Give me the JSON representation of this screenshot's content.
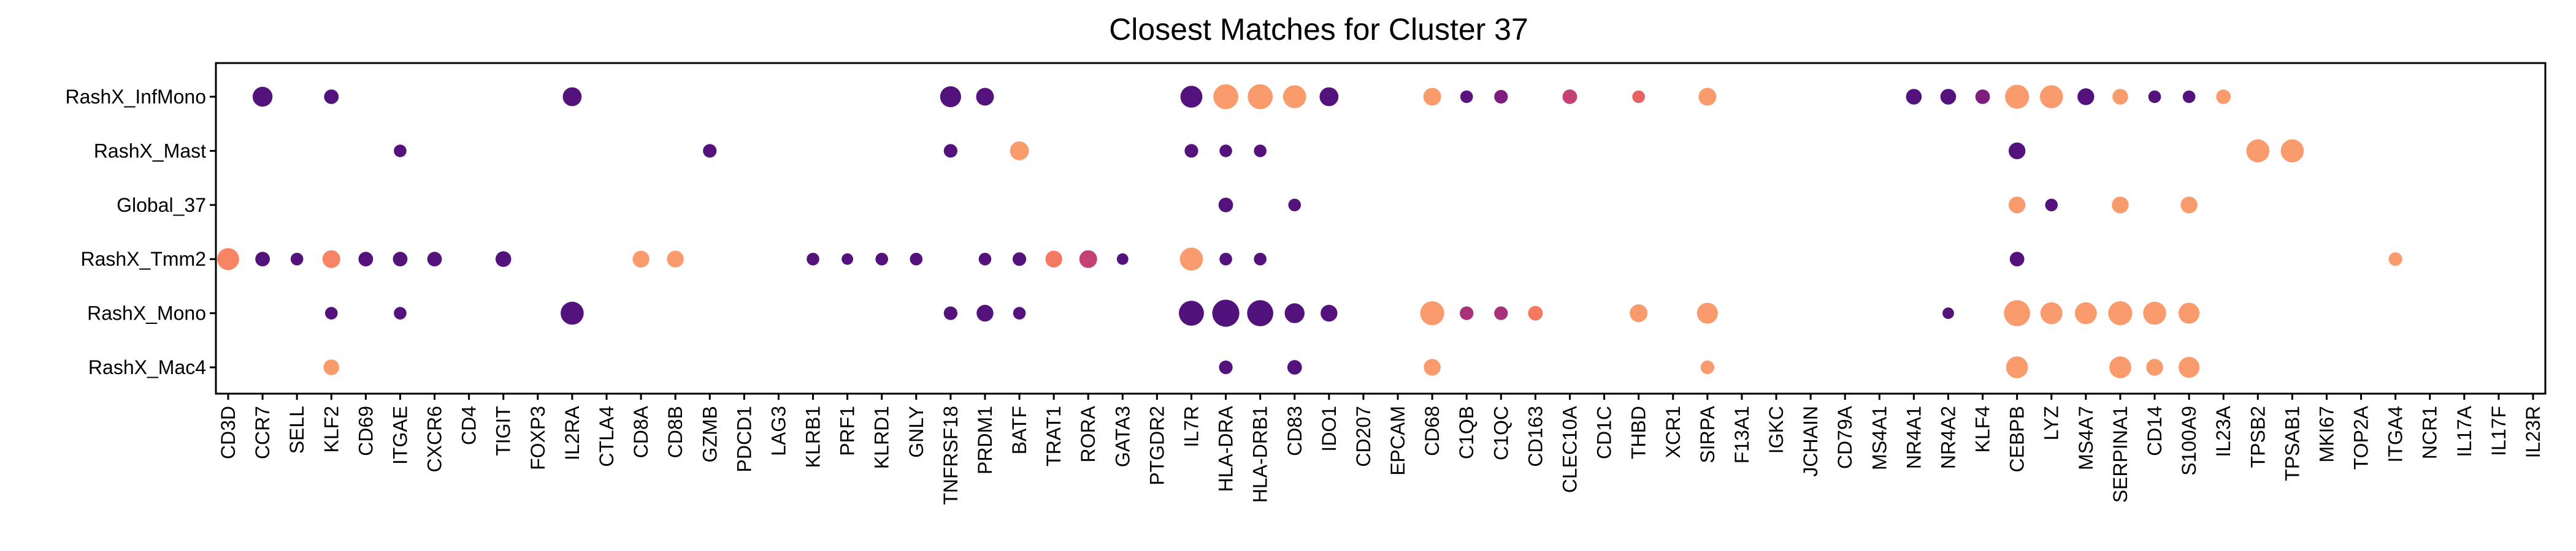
{
  "chart_data": {
    "type": "scatter",
    "title": "Closest Matches for Cluster 37",
    "xlabel": "",
    "ylabel": "",
    "grid": false,
    "legend": "none",
    "genes": [
      "CD3D",
      "CCR7",
      "SELL",
      "KLF2",
      "CD69",
      "ITGAE",
      "CXCR6",
      "CD4",
      "TIGIT",
      "FOXP3",
      "IL2RA",
      "CTLA4",
      "CD8A",
      "CD8B",
      "GZMB",
      "PDCD1",
      "LAG3",
      "KLRB1",
      "PRF1",
      "KLRD1",
      "GNLY",
      "TNFRSF18",
      "PRDM1",
      "BATF",
      "TRAT1",
      "RORA",
      "GATA3",
      "PTGDR2",
      "IL7R",
      "HLA-DRA",
      "HLA-DRB1",
      "CD83",
      "IDO1",
      "CD207",
      "EPCAM",
      "CD68",
      "C1QB",
      "C1QC",
      "CD163",
      "CLEC10A",
      "CD1C",
      "THBD",
      "XCR1",
      "SIRPA",
      "F13A1",
      "IGKC",
      "JCHAIN",
      "CD79A",
      "MS4A1",
      "NR4A1",
      "NR4A2",
      "KLF4",
      "CEBPB",
      "LYZ",
      "MS4A7",
      "SERPINA1",
      "CD14",
      "S100A9",
      "IL23A",
      "TPSB2",
      "TPSAB1",
      "MKI67",
      "TOP2A",
      "ITGA4",
      "NCR1",
      "IL17A",
      "IL17F",
      "IL23R"
    ],
    "rows": [
      "RashX_InfMono",
      "RashX_Mast",
      "Global_37",
      "RashX_Tmm2",
      "RashX_Mono",
      "RashX_Mac4"
    ],
    "size_scale": "point size = fraction of cells expressing (0-1)",
    "color_scale": "point color = scaled expression (0 dark purple - 1 light orange)",
    "points": [
      {
        "row": "RashX_InfMono",
        "gene": "CCR7",
        "size": 0.6,
        "color": 0.05
      },
      {
        "row": "RashX_InfMono",
        "gene": "KLF2",
        "size": 0.35,
        "color": 0.05
      },
      {
        "row": "RashX_InfMono",
        "gene": "IL2RA",
        "size": 0.55,
        "color": 0.05
      },
      {
        "row": "RashX_InfMono",
        "gene": "TNFRSF18",
        "size": 0.65,
        "color": 0.05
      },
      {
        "row": "RashX_InfMono",
        "gene": "PRDM1",
        "size": 0.5,
        "color": 0.05
      },
      {
        "row": "RashX_InfMono",
        "gene": "IL7R",
        "size": 0.7,
        "color": 0.05
      },
      {
        "row": "RashX_InfMono",
        "gene": "HLA-DRA",
        "size": 0.85,
        "color": 0.95
      },
      {
        "row": "RashX_InfMono",
        "gene": "HLA-DRB1",
        "size": 0.85,
        "color": 0.95
      },
      {
        "row": "RashX_InfMono",
        "gene": "CD83",
        "size": 0.75,
        "color": 0.95
      },
      {
        "row": "RashX_InfMono",
        "gene": "IDO1",
        "size": 0.55,
        "color": 0.05
      },
      {
        "row": "RashX_InfMono",
        "gene": "CD68",
        "size": 0.5,
        "color": 0.95
      },
      {
        "row": "RashX_InfMono",
        "gene": "C1QB",
        "size": 0.25,
        "color": 0.1
      },
      {
        "row": "RashX_InfMono",
        "gene": "C1QC",
        "size": 0.3,
        "color": 0.3
      },
      {
        "row": "RashX_InfMono",
        "gene": "CLEC10A",
        "size": 0.35,
        "color": 0.55
      },
      {
        "row": "RashX_InfMono",
        "gene": "THBD",
        "size": 0.25,
        "color": 0.7
      },
      {
        "row": "RashX_InfMono",
        "gene": "SIRPA",
        "size": 0.5,
        "color": 0.95
      },
      {
        "row": "RashX_InfMono",
        "gene": "NR4A1",
        "size": 0.4,
        "color": 0.05
      },
      {
        "row": "RashX_InfMono",
        "gene": "NR4A2",
        "size": 0.4,
        "color": 0.05
      },
      {
        "row": "RashX_InfMono",
        "gene": "KLF4",
        "size": 0.35,
        "color": 0.3
      },
      {
        "row": "RashX_InfMono",
        "gene": "CEBPB",
        "size": 0.8,
        "color": 0.95
      },
      {
        "row": "RashX_InfMono",
        "gene": "LYZ",
        "size": 0.75,
        "color": 0.95
      },
      {
        "row": "RashX_InfMono",
        "gene": "MS4A7",
        "size": 0.45,
        "color": 0.05
      },
      {
        "row": "RashX_InfMono",
        "gene": "SERPINA1",
        "size": 0.4,
        "color": 0.95
      },
      {
        "row": "RashX_InfMono",
        "gene": "CD14",
        "size": 0.25,
        "color": 0.05
      },
      {
        "row": "RashX_InfMono",
        "gene": "S100A9",
        "size": 0.25,
        "color": 0.05
      },
      {
        "row": "RashX_InfMono",
        "gene": "IL23A",
        "size": 0.35,
        "color": 0.95
      },
      {
        "row": "RashX_Mast",
        "gene": "ITGAE",
        "size": 0.25,
        "color": 0.05
      },
      {
        "row": "RashX_Mast",
        "gene": "GZMB",
        "size": 0.3,
        "color": 0.05
      },
      {
        "row": "RashX_Mast",
        "gene": "TNFRSF18",
        "size": 0.3,
        "color": 0.05
      },
      {
        "row": "RashX_Mast",
        "gene": "BATF",
        "size": 0.55,
        "color": 0.95
      },
      {
        "row": "RashX_Mast",
        "gene": "IL7R",
        "size": 0.3,
        "color": 0.05
      },
      {
        "row": "RashX_Mast",
        "gene": "HLA-DRA",
        "size": 0.25,
        "color": 0.05
      },
      {
        "row": "RashX_Mast",
        "gene": "HLA-DRB1",
        "size": 0.25,
        "color": 0.05
      },
      {
        "row": "RashX_Mast",
        "gene": "CEBPB",
        "size": 0.45,
        "color": 0.05
      },
      {
        "row": "RashX_Mast",
        "gene": "TPSB2",
        "size": 0.75,
        "color": 0.95
      },
      {
        "row": "RashX_Mast",
        "gene": "TPSAB1",
        "size": 0.75,
        "color": 0.95
      },
      {
        "row": "Global_37",
        "gene": "HLA-DRA",
        "size": 0.35,
        "color": 0.05
      },
      {
        "row": "Global_37",
        "gene": "CD83",
        "size": 0.25,
        "color": 0.05
      },
      {
        "row": "Global_37",
        "gene": "CEBPB",
        "size": 0.45,
        "color": 0.95
      },
      {
        "row": "Global_37",
        "gene": "LYZ",
        "size": 0.25,
        "color": 0.05
      },
      {
        "row": "Global_37",
        "gene": "SERPINA1",
        "size": 0.45,
        "color": 0.95
      },
      {
        "row": "Global_37",
        "gene": "S100A9",
        "size": 0.45,
        "color": 0.95
      },
      {
        "row": "RashX_Tmm2",
        "gene": "CD3D",
        "size": 0.7,
        "color": 0.85
      },
      {
        "row": "RashX_Tmm2",
        "gene": "CCR7",
        "size": 0.35,
        "color": 0.05
      },
      {
        "row": "RashX_Tmm2",
        "gene": "SELL",
        "size": 0.25,
        "color": 0.05
      },
      {
        "row": "RashX_Tmm2",
        "gene": "KLF2",
        "size": 0.5,
        "color": 0.85
      },
      {
        "row": "RashX_Tmm2",
        "gene": "CD69",
        "size": 0.35,
        "color": 0.05
      },
      {
        "row": "RashX_Tmm2",
        "gene": "ITGAE",
        "size": 0.35,
        "color": 0.05
      },
      {
        "row": "RashX_Tmm2",
        "gene": "CXCR6",
        "size": 0.35,
        "color": 0.05
      },
      {
        "row": "RashX_Tmm2",
        "gene": "TIGIT",
        "size": 0.4,
        "color": 0.05
      },
      {
        "row": "RashX_Tmm2",
        "gene": "CD8A",
        "size": 0.45,
        "color": 0.95
      },
      {
        "row": "RashX_Tmm2",
        "gene": "CD8B",
        "size": 0.45,
        "color": 0.95
      },
      {
        "row": "RashX_Tmm2",
        "gene": "KLRB1",
        "size": 0.25,
        "color": 0.05
      },
      {
        "row": "RashX_Tmm2",
        "gene": "PRF1",
        "size": 0.2,
        "color": 0.05
      },
      {
        "row": "RashX_Tmm2",
        "gene": "KLRD1",
        "size": 0.25,
        "color": 0.05
      },
      {
        "row": "RashX_Tmm2",
        "gene": "GNLY",
        "size": 0.25,
        "color": 0.05
      },
      {
        "row": "RashX_Tmm2",
        "gene": "PRDM1",
        "size": 0.25,
        "color": 0.05
      },
      {
        "row": "RashX_Tmm2",
        "gene": "BATF",
        "size": 0.3,
        "color": 0.05
      },
      {
        "row": "RashX_Tmm2",
        "gene": "TRAT1",
        "size": 0.45,
        "color": 0.8
      },
      {
        "row": "RashX_Tmm2",
        "gene": "RORA",
        "size": 0.5,
        "color": 0.55
      },
      {
        "row": "RashX_Tmm2",
        "gene": "GATA3",
        "size": 0.2,
        "color": 0.05
      },
      {
        "row": "RashX_Tmm2",
        "gene": "IL7R",
        "size": 0.75,
        "color": 0.95
      },
      {
        "row": "RashX_Tmm2",
        "gene": "HLA-DRA",
        "size": 0.25,
        "color": 0.05
      },
      {
        "row": "RashX_Tmm2",
        "gene": "HLA-DRB1",
        "size": 0.25,
        "color": 0.05
      },
      {
        "row": "RashX_Tmm2",
        "gene": "CEBPB",
        "size": 0.35,
        "color": 0.05
      },
      {
        "row": "RashX_Tmm2",
        "gene": "ITGA4",
        "size": 0.3,
        "color": 0.95
      },
      {
        "row": "RashX_Mono",
        "gene": "KLF2",
        "size": 0.25,
        "color": 0.05
      },
      {
        "row": "RashX_Mono",
        "gene": "ITGAE",
        "size": 0.25,
        "color": 0.05
      },
      {
        "row": "RashX_Mono",
        "gene": "IL2RA",
        "size": 0.75,
        "color": 0.05
      },
      {
        "row": "RashX_Mono",
        "gene": "TNFRSF18",
        "size": 0.3,
        "color": 0.05
      },
      {
        "row": "RashX_Mono",
        "gene": "PRDM1",
        "size": 0.45,
        "color": 0.05
      },
      {
        "row": "RashX_Mono",
        "gene": "BATF",
        "size": 0.25,
        "color": 0.05
      },
      {
        "row": "RashX_Mono",
        "gene": "IL7R",
        "size": 0.85,
        "color": 0.02
      },
      {
        "row": "RashX_Mono",
        "gene": "HLA-DRA",
        "size": 0.95,
        "color": 0.02
      },
      {
        "row": "RashX_Mono",
        "gene": "HLA-DRB1",
        "size": 0.9,
        "color": 0.02
      },
      {
        "row": "RashX_Mono",
        "gene": "CD83",
        "size": 0.6,
        "color": 0.05
      },
      {
        "row": "RashX_Mono",
        "gene": "IDO1",
        "size": 0.45,
        "color": 0.05
      },
      {
        "row": "RashX_Mono",
        "gene": "CD68",
        "size": 0.8,
        "color": 0.95
      },
      {
        "row": "RashX_Mono",
        "gene": "C1QB",
        "size": 0.3,
        "color": 0.45
      },
      {
        "row": "RashX_Mono",
        "gene": "C1QC",
        "size": 0.3,
        "color": 0.45
      },
      {
        "row": "RashX_Mono",
        "gene": "CD163",
        "size": 0.35,
        "color": 0.8
      },
      {
        "row": "RashX_Mono",
        "gene": "THBD",
        "size": 0.5,
        "color": 0.95
      },
      {
        "row": "RashX_Mono",
        "gene": "SIRPA",
        "size": 0.65,
        "color": 0.95
      },
      {
        "row": "RashX_Mono",
        "gene": "NR4A2",
        "size": 0.2,
        "color": 0.05
      },
      {
        "row": "RashX_Mono",
        "gene": "CEBPB",
        "size": 0.9,
        "color": 0.95
      },
      {
        "row": "RashX_Mono",
        "gene": "LYZ",
        "size": 0.7,
        "color": 0.95
      },
      {
        "row": "RashX_Mono",
        "gene": "MS4A7",
        "size": 0.7,
        "color": 0.95
      },
      {
        "row": "RashX_Mono",
        "gene": "SERPINA1",
        "size": 0.8,
        "color": 0.95
      },
      {
        "row": "RashX_Mono",
        "gene": "CD14",
        "size": 0.75,
        "color": 0.95
      },
      {
        "row": "RashX_Mono",
        "gene": "S100A9",
        "size": 0.65,
        "color": 0.95
      },
      {
        "row": "RashX_Mac4",
        "gene": "KLF2",
        "size": 0.4,
        "color": 0.95
      },
      {
        "row": "RashX_Mac4",
        "gene": "HLA-DRA",
        "size": 0.3,
        "color": 0.05
      },
      {
        "row": "RashX_Mac4",
        "gene": "CD83",
        "size": 0.35,
        "color": 0.05
      },
      {
        "row": "RashX_Mac4",
        "gene": "CD68",
        "size": 0.45,
        "color": 0.95
      },
      {
        "row": "RashX_Mac4",
        "gene": "SIRPA",
        "size": 0.3,
        "color": 0.95
      },
      {
        "row": "RashX_Mac4",
        "gene": "CEBPB",
        "size": 0.7,
        "color": 0.95
      },
      {
        "row": "RashX_Mac4",
        "gene": "SERPINA1",
        "size": 0.7,
        "color": 0.95
      },
      {
        "row": "RashX_Mac4",
        "gene": "CD14",
        "size": 0.45,
        "color": 0.95
      },
      {
        "row": "RashX_Mac4",
        "gene": "S100A9",
        "size": 0.65,
        "color": 0.95
      }
    ]
  }
}
